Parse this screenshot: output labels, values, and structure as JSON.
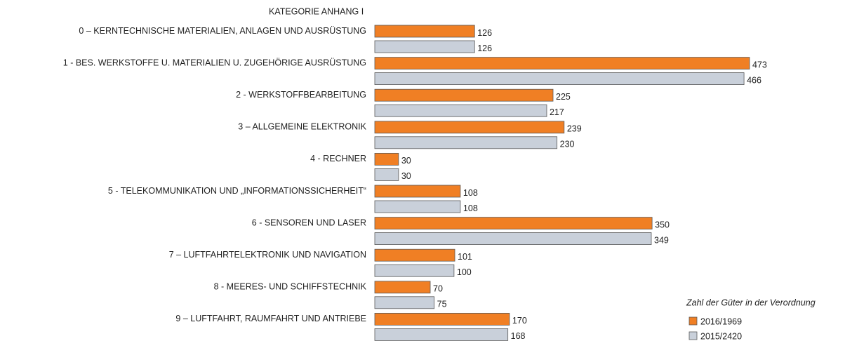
{
  "chart_data": {
    "type": "bar",
    "orientation": "horizontal",
    "title": "KATEGORIE ANHANG I",
    "categories": [
      "0 – KERNTECHNISCHE MATERIALIEN, ANLAGEN UND AUSRÜSTUNG",
      "1 -  BES. WERKSTOFFE U. MATERIALIEN U. ZUGEHÖRIGE AUSRÜSTUNG",
      "2 - WERKSTOFFBEARBEITUNG",
      "3 – ALLGEMEINE ELEKTRONIK",
      "4 - RECHNER",
      "5 - TELEKOMMUNIKATION UND „INFORMATIONSSICHERHEIT“",
      "6 - SENSOREN UND LASER",
      "7 – LUFTFAHRTELEKTRONIK UND NAVIGATION",
      "8 - MEERES- UND SCHIFFSTECHNIK",
      "9 – LUFTFAHRT, RAUMFAHRT UND ANTRIEBE"
    ],
    "series": [
      {
        "name": "2016/1969",
        "color": "#f07f24",
        "values": [
          126,
          473,
          225,
          239,
          30,
          108,
          350,
          101,
          70,
          170
        ]
      },
      {
        "name": "2015/2420",
        "color": "#c9d0da",
        "values": [
          126,
          466,
          217,
          230,
          30,
          108,
          349,
          100,
          75,
          168
        ]
      }
    ],
    "legend_title": "Zahl der Güter in der Verordnung",
    "legend": "lower right"
  }
}
